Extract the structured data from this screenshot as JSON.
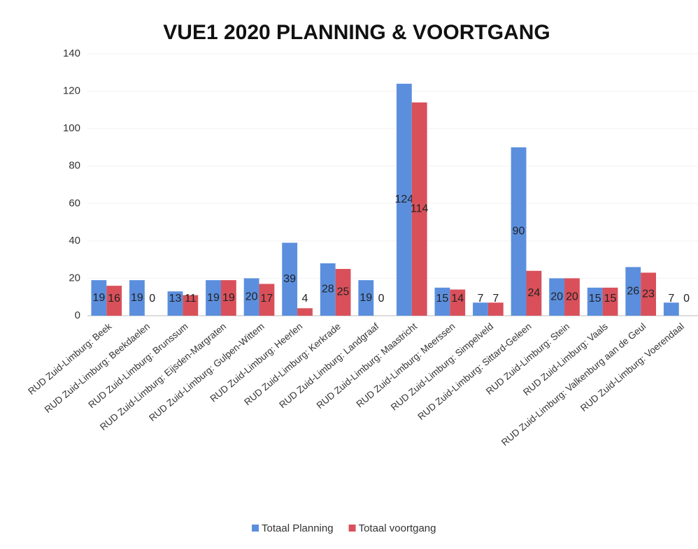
{
  "chart_data": {
    "type": "bar",
    "title": "VUE1 2020 PLANNING & VOORTGANG",
    "categories": [
      "RUD Zuid-Limburg: Beek",
      "RUD Zuid-Limburg: Beekdaelen",
      "RUD Zuid-Limburg: Brunssum",
      "RUD Zuid-Limburg: Eijsden-Margraten",
      "RUD Zuid-Limburg: Gulpen-Wittem",
      "RUD Zuid-Limburg: Heerlen",
      "RUD Zuid-Limburg: Kerkrade",
      "RUD Zuid-Limburg: Landgraaf",
      "RUD Zuid-Limburg: Maastricht",
      "RUD Zuid-Limburg: Meerssen",
      "RUD Zuid-Limburg: Simpelveld",
      "RUD Zuid-Limburg: Sittard-Geleen",
      "RUD Zuid-Limburg: Stein",
      "RUD Zuid-Limburg: Vaals",
      "RUD Zuid-Limburg: Valkenburg aan de Geul",
      "RUD Zuid-Limburg: Voerendaal"
    ],
    "series": [
      {
        "name": "Totaal Planning",
        "color": "#5b8fde",
        "values": [
          19,
          19,
          13,
          19,
          20,
          39,
          28,
          19,
          124,
          15,
          7,
          90,
          20,
          15,
          26,
          7
        ]
      },
      {
        "name": "Totaal voortgang",
        "color": "#d9505a",
        "values": [
          16,
          0,
          11,
          19,
          17,
          4,
          25,
          0,
          114,
          14,
          7,
          24,
          20,
          15,
          23,
          0
        ]
      }
    ],
    "ylim": [
      0,
      140
    ],
    "yticks": [
      0,
      20,
      40,
      60,
      80,
      100,
      120,
      140
    ],
    "legend": "bottom"
  }
}
